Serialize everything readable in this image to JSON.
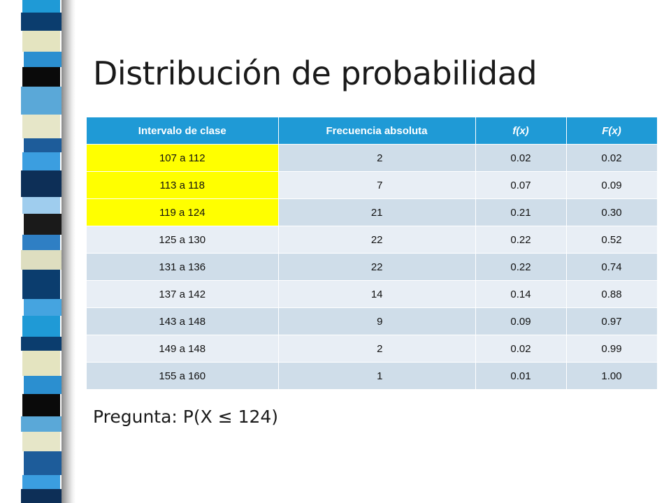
{
  "slide": {
    "title": "Distribución de probabilidad",
    "question": "Pregunta: P(X ≤ 124)"
  },
  "table": {
    "headers": [
      "Intervalo de clase",
      "Frecuencia absoluta",
      "f(x)",
      "F(x)"
    ],
    "rows": [
      {
        "interval": "107 a 112",
        "freq": "2",
        "fx": "0.02",
        "Fx": "0.02",
        "highlight": true
      },
      {
        "interval": "113 a 118",
        "freq": "7",
        "fx": "0.07",
        "Fx": "0.09",
        "highlight": true
      },
      {
        "interval": "119 a 124",
        "freq": "21",
        "fx": "0.21",
        "Fx": "0.30",
        "highlight": true
      },
      {
        "interval": "125 a 130",
        "freq": "22",
        "fx": "0.22",
        "Fx": "0.52",
        "highlight": false
      },
      {
        "interval": "131 a 136",
        "freq": "22",
        "fx": "0.22",
        "Fx": "0.74",
        "highlight": false
      },
      {
        "interval": "137 a 142",
        "freq": "14",
        "fx": "0.14",
        "Fx": "0.88",
        "highlight": false
      },
      {
        "interval": "143 a 148",
        "freq": "9",
        "fx": "0.09",
        "Fx": "0.97",
        "highlight": false
      },
      {
        "interval": "149 a 148",
        "freq": "2",
        "fx": "0.02",
        "Fx": "0.99",
        "highlight": false
      },
      {
        "interval": "155 a 160",
        "freq": "1",
        "fx": "0.01",
        "Fx": "1.00",
        "highlight": false
      }
    ]
  },
  "colors": {
    "header_bg": "#1f9ad6",
    "highlight": "#ffff00",
    "row_odd": "#cfdde9",
    "row_even": "#e8eef5"
  }
}
